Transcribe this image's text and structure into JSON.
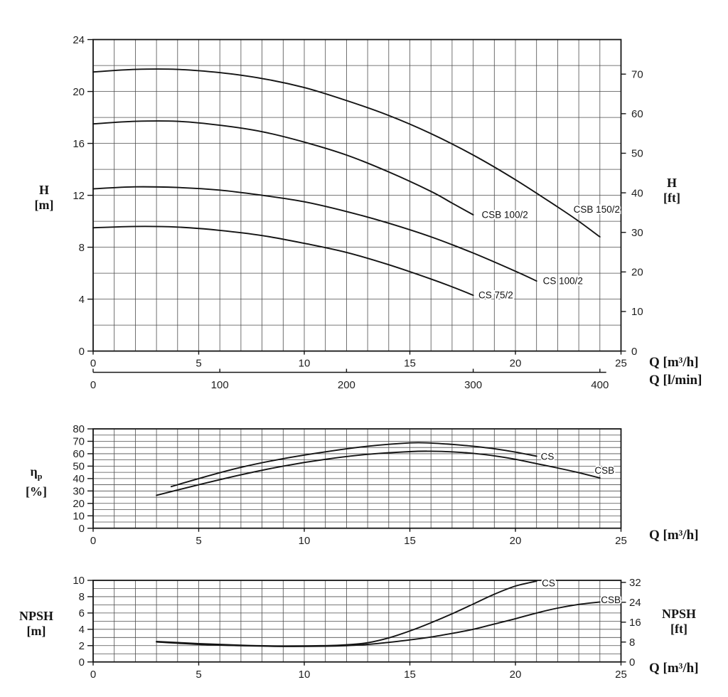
{
  "page": {
    "background": "#ffffff",
    "ink_color": "#151515",
    "grid_color": "#4d4d4d",
    "curve_color": "#141414"
  },
  "labels": {
    "h_m": {
      "line1": "H",
      "line2": "[m]"
    },
    "h_ft": {
      "line1": "H",
      "line2": "[ft]"
    },
    "eta": {
      "symbol": "η",
      "sub": "p",
      "unit": "[%]"
    },
    "npsh_m": {
      "line1": "NPSH",
      "line2": "[m]"
    },
    "npsh_ft": {
      "line1": "NPSH",
      "line2": "[ft]"
    },
    "q_m3h": "Q [m³/h]",
    "q_lmin": "Q [l/min]"
  },
  "chart_data": [
    {
      "id": "head-capacity",
      "type": "line",
      "title": "",
      "xlabel": "Q [m³/h]",
      "xlabel2": "Q [l/min]",
      "ylabel": "H [m]",
      "ylabel2": "H [ft]",
      "xlim": [
        0,
        25
      ],
      "ylim": [
        0,
        24
      ],
      "grid": {
        "x_step": 1,
        "y_step": 2,
        "on": true
      },
      "x_ticks": [
        0,
        5,
        10,
        15,
        20,
        25
      ],
      "y_ticks": [
        0,
        4,
        8,
        12,
        16,
        20,
        24
      ],
      "y2": {
        "unit": "ft",
        "m_per_unit": 0.3048,
        "ticks": [
          0,
          10,
          20,
          30,
          40,
          50,
          60,
          70
        ]
      },
      "x2": {
        "unit": "l/min",
        "m3h_per_unit": 0.06,
        "ticks": [
          0,
          100,
          200,
          300,
          400
        ],
        "axis_end": 24.3
      },
      "series": [
        {
          "name": "CSB 150/2",
          "label_at": [
            22.75,
            10.9
          ],
          "points": [
            [
              0,
              21.5
            ],
            [
              2,
              21.7
            ],
            [
              4,
              21.7
            ],
            [
              6,
              21.45
            ],
            [
              8,
              21.0
            ],
            [
              10,
              20.3
            ],
            [
              12,
              19.3
            ],
            [
              14,
              18.15
            ],
            [
              16,
              16.75
            ],
            [
              18,
              15.1
            ],
            [
              20,
              13.2
            ],
            [
              22,
              11.1
            ],
            [
              23,
              10.0
            ],
            [
              24,
              8.8
            ]
          ]
        },
        {
          "name": "CSB 100/2",
          "label_at": [
            18.4,
            10.5
          ],
          "points": [
            [
              0,
              17.5
            ],
            [
              2,
              17.7
            ],
            [
              4,
              17.7
            ],
            [
              6,
              17.4
            ],
            [
              8,
              16.9
            ],
            [
              10,
              16.1
            ],
            [
              12,
              15.1
            ],
            [
              14,
              13.8
            ],
            [
              16,
              12.3
            ],
            [
              17,
              11.4
            ],
            [
              18,
              10.5
            ]
          ]
        },
        {
          "name": "CS 100/2",
          "label_at": [
            21.3,
            5.4
          ],
          "points": [
            [
              0,
              12.5
            ],
            [
              2,
              12.65
            ],
            [
              4,
              12.6
            ],
            [
              6,
              12.4
            ],
            [
              8,
              12.0
            ],
            [
              10,
              11.5
            ],
            [
              12,
              10.75
            ],
            [
              14,
              9.85
            ],
            [
              16,
              8.8
            ],
            [
              18,
              7.55
            ],
            [
              20,
              6.15
            ],
            [
              21,
              5.4
            ]
          ]
        },
        {
          "name": "CS 75/2",
          "label_at": [
            18.25,
            4.3
          ],
          "points": [
            [
              0,
              9.5
            ],
            [
              2,
              9.6
            ],
            [
              4,
              9.55
            ],
            [
              6,
              9.3
            ],
            [
              8,
              8.9
            ],
            [
              10,
              8.3
            ],
            [
              12,
              7.6
            ],
            [
              14,
              6.65
            ],
            [
              16,
              5.55
            ],
            [
              17,
              4.95
            ],
            [
              18,
              4.3
            ]
          ]
        }
      ]
    },
    {
      "id": "efficiency",
      "type": "line",
      "title": "",
      "xlabel": "Q [m³/h]",
      "ylabel": "ηp [%]",
      "xlim": [
        0,
        25
      ],
      "ylim": [
        0,
        80
      ],
      "grid": {
        "x_step": 1,
        "y_step": 5,
        "on": true
      },
      "x_ticks": [
        0,
        5,
        10,
        15,
        20,
        25
      ],
      "y_ticks": [
        0,
        10,
        20,
        30,
        40,
        50,
        60,
        70,
        80
      ],
      "series": [
        {
          "name": "CS",
          "label_at": [
            21.2,
            57.7
          ],
          "points": [
            [
              3.7,
              33.5
            ],
            [
              5,
              40
            ],
            [
              7,
              49
            ],
            [
              9,
              56
            ],
            [
              11,
              61.5
            ],
            [
              13,
              66
            ],
            [
              15,
              68.7
            ],
            [
              16,
              68.6
            ],
            [
              17,
              67.5
            ],
            [
              18,
              66
            ],
            [
              19,
              64
            ],
            [
              20,
              61.3
            ],
            [
              21,
              58
            ]
          ]
        },
        {
          "name": "CSB",
          "label_at": [
            23.75,
            46.5
          ],
          "points": [
            [
              3,
              26.5
            ],
            [
              5,
              35
            ],
            [
              7,
              43
            ],
            [
              9,
              50
            ],
            [
              11,
              55.5
            ],
            [
              13,
              59.5
            ],
            [
              15,
              61.7
            ],
            [
              16,
              62
            ],
            [
              17,
              61.5
            ],
            [
              18,
              60.3
            ],
            [
              19,
              58.3
            ],
            [
              20,
              55.5
            ],
            [
              21,
              52
            ],
            [
              22,
              48.5
            ],
            [
              23,
              44.7
            ],
            [
              24,
              40.5
            ]
          ]
        }
      ]
    },
    {
      "id": "npsh",
      "type": "line",
      "title": "",
      "xlabel": "Q [m³/h]",
      "ylabel": "NPSH [m]",
      "ylabel2": "NPSH [ft]",
      "xlim": [
        0,
        25
      ],
      "ylim": [
        0,
        10
      ],
      "grid": {
        "x_step": 1,
        "y_step": 1,
        "on": true
      },
      "x_ticks": [
        0,
        5,
        10,
        15,
        20,
        25
      ],
      "y_ticks": [
        0,
        2,
        4,
        6,
        8,
        10
      ],
      "y2": {
        "unit": "ft",
        "m_per_unit": 0.3048,
        "ticks": [
          0,
          8,
          16,
          24,
          32
        ]
      },
      "series": [
        {
          "name": "CS",
          "label_at": [
            21.25,
            9.65
          ],
          "points": [
            [
              3,
              2.5
            ],
            [
              5,
              2.25
            ],
            [
              7,
              2.05
            ],
            [
              9,
              1.95
            ],
            [
              11,
              2.0
            ],
            [
              12,
              2.1
            ],
            [
              13,
              2.35
            ],
            [
              14,
              2.95
            ],
            [
              15,
              3.8
            ],
            [
              16,
              4.8
            ],
            [
              17,
              5.9
            ],
            [
              18,
              7.1
            ],
            [
              19,
              8.3
            ],
            [
              20,
              9.3
            ],
            [
              21,
              9.9
            ]
          ]
        },
        {
          "name": "CSB",
          "label_at": [
            24.05,
            7.6
          ],
          "points": [
            [
              3,
              2.45
            ],
            [
              5,
              2.15
            ],
            [
              7,
              2.0
            ],
            [
              9,
              1.9
            ],
            [
              11,
              1.93
            ],
            [
              12,
              2.0
            ],
            [
              13,
              2.15
            ],
            [
              14,
              2.4
            ],
            [
              15,
              2.7
            ],
            [
              16,
              3.05
            ],
            [
              17,
              3.5
            ],
            [
              18,
              4.0
            ],
            [
              19,
              4.65
            ],
            [
              20,
              5.3
            ],
            [
              21,
              6.0
            ],
            [
              22,
              6.6
            ],
            [
              23,
              7.05
            ],
            [
              24,
              7.35
            ]
          ]
        }
      ]
    }
  ]
}
